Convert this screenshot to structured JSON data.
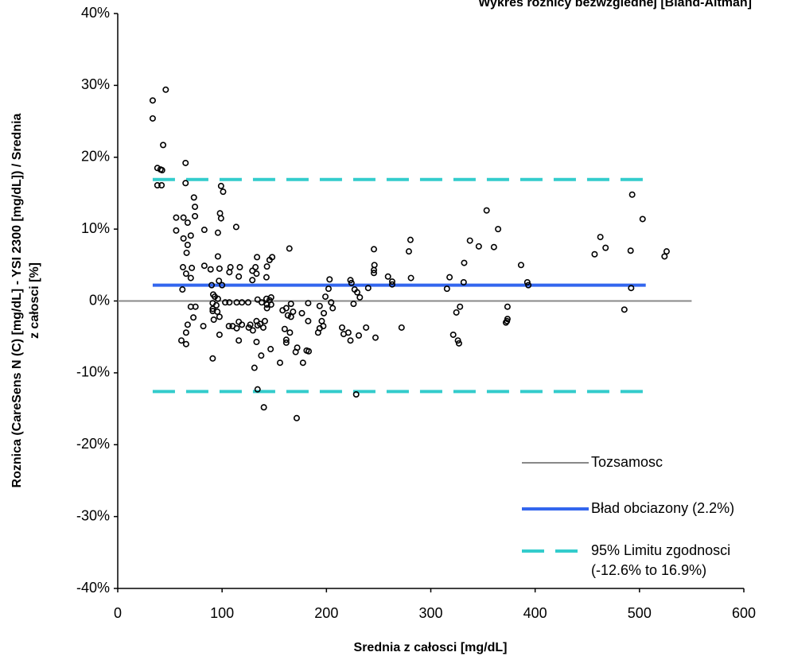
{
  "chart_data": {
    "type": "scatter",
    "title": "Wykres roznicy bezwzglednej [Bland-Altman]",
    "x_label": "Srednia z całosci [mg/dL]",
    "y_label": [
      "Roznica  (CareSens N  (C)  [mg/dL] - YSI 2300 [mg/dL]) / Srednia",
      "z całosci [%]"
    ],
    "xlim": [
      0,
      600
    ],
    "ylim": [
      -40,
      40
    ],
    "xticks": [
      0,
      100,
      200,
      300,
      400,
      500,
      600
    ],
    "yticks": [
      {
        "value": 40,
        "label": "40%"
      },
      {
        "value": 30,
        "label": "30%"
      },
      {
        "value": 20,
        "label": "20%"
      },
      {
        "value": 10,
        "label": "10%"
      },
      {
        "value": 0,
        "label": "0%"
      },
      {
        "value": -10,
        "label": "-10%"
      },
      {
        "value": -20,
        "label": "-20%"
      },
      {
        "value": -30,
        "label": "-30%"
      },
      {
        "value": -40,
        "label": "-40%"
      }
    ],
    "reference_lines": [
      {
        "name_lines": [
          "Tozsamosc"
        ],
        "color": "#888888",
        "dashed": false,
        "width": 2,
        "values": [
          0
        ],
        "x": [
          0,
          550
        ]
      },
      {
        "name_lines": [
          "Bład obciazony (2.2%)"
        ],
        "color": "#3366ee",
        "dashed": false,
        "width": 4,
        "values": [
          2.2
        ],
        "x": [
          33.5,
          506
        ]
      },
      {
        "name_lines": [
          "95% Limitu zgodnosci",
          "(-12.6% to 16.9%)"
        ],
        "color": "#33cccc",
        "dashed": true,
        "width": 4,
        "values": [
          -12.6,
          16.9
        ],
        "x": [
          33.5,
          506
        ]
      }
    ],
    "series": [
      {
        "color": "#000000",
        "x": [
          33.5,
          33.5,
          38,
          41,
          38,
          42,
          43.5,
          46,
          42.5,
          65,
          65,
          56,
          63,
          67,
          73,
          74,
          74,
          56,
          63,
          70,
          67,
          66,
          62.5,
          71,
          65.5,
          70,
          62,
          83,
          83,
          89,
          97.5,
          96,
          99,
          101,
          98,
          99,
          96,
          113.5,
          108,
          107,
          117,
          116,
          100,
          97,
          90,
          91.5,
          93,
          96,
          91,
          94.5,
          91,
          95.5,
          97.5,
          92,
          91,
          103,
          107,
          114,
          119,
          125,
          116,
          114,
          110,
          106.5,
          119,
          125.5,
          70,
          74.5,
          72.5,
          67,
          65.5,
          61,
          65.5,
          82,
          91,
          97.5,
          116,
          129,
          129,
          133,
          133.5,
          132,
          143,
          148,
          145.5,
          142.5,
          134,
          142.5,
          138,
          145.5,
          147,
          143,
          147,
          133,
          136.5,
          141,
          139.5,
          134,
          127,
          143,
          129.5,
          133,
          146.5,
          137.5,
          131,
          134,
          140,
          155.5,
          164.5,
          158,
          161.5,
          166,
          163,
          166,
          168,
          160,
          161.5,
          161.5,
          165,
          172,
          170.5,
          177.5,
          181,
          183,
          171.5,
          182.5,
          182.5,
          176.5,
          192,
          193.5,
          195.5,
          197,
          193.5,
          199,
          202,
          203,
          204.5,
          206,
          197.5,
          215,
          216.5,
          221,
          223,
          223,
          224,
          227,
          229.5,
          232,
          226,
          228.5,
          231,
          238,
          240,
          245.5,
          245.5,
          246,
          245.5,
          247,
          259,
          263,
          263,
          272,
          279,
          280.5,
          281,
          315.5,
          318,
          321.5,
          324.5,
          328,
          326,
          327,
          331.5,
          332,
          337.5,
          346,
          353.5,
          360.5,
          364.5,
          373.5,
          373.5,
          372,
          373,
          386.5,
          392.5,
          393.5,
          457,
          462.5,
          467.5,
          485.5,
          493,
          491.5,
          492,
          503,
          524,
          526
        ],
        "values": [
          27.9,
          25.4,
          18.5,
          18.3,
          16.1,
          16.1,
          21.7,
          29.4,
          18.2,
          19.2,
          16.4,
          11.6,
          11.6,
          10.9,
          14.4,
          13.1,
          11.8,
          9.8,
          8.7,
          9.1,
          7.8,
          6.7,
          4.7,
          4.6,
          3.8,
          3.2,
          1.6,
          9.9,
          4.9,
          4.4,
          4.5,
          6.2,
          16.0,
          15.2,
          12.2,
          11.5,
          9.5,
          10.3,
          4.7,
          4.0,
          4.7,
          3.4,
          2.2,
          2.8,
          2.2,
          0.9,
          0.6,
          0.3,
          -0.3,
          -0.6,
          -1.1,
          -1.5,
          -2.2,
          -2.6,
          -1.4,
          -0.2,
          -0.2,
          -0.2,
          -0.2,
          -0.2,
          -2.9,
          -3.8,
          -3.5,
          -3.5,
          -3.3,
          -3.7,
          -0.8,
          -0.8,
          -2.3,
          -3.3,
          -4.4,
          -5.5,
          -6.0,
          -3.5,
          -8.0,
          -4.7,
          -5.5,
          4.2,
          2.9,
          3.8,
          6.1,
          4.7,
          4.8,
          6.1,
          5.7,
          3.3,
          0.2,
          0.3,
          -0.2,
          0.1,
          0.5,
          -0.5,
          -0.5,
          -2.8,
          -3.2,
          -2.8,
          -3.7,
          -3.4,
          -3.3,
          -1.0,
          -4.1,
          -5.7,
          -6.7,
          -7.6,
          -9.3,
          -12.3,
          -14.8,
          -8.6,
          7.3,
          -1.3,
          -1.0,
          -0.4,
          -2.0,
          -2.2,
          -1.5,
          -3.9,
          -5.4,
          -5.8,
          -4.4,
          -6.5,
          -7.1,
          -8.6,
          -6.9,
          -7.0,
          -16.3,
          -0.3,
          -2.8,
          -1.7,
          -4.4,
          -3.8,
          -2.8,
          -3.5,
          -0.7,
          0.6,
          1.7,
          3.0,
          -0.2,
          -1.0,
          -1.7,
          -3.7,
          -4.6,
          -4.4,
          -5.5,
          2.9,
          2.5,
          1.6,
          1.2,
          0.5,
          -0.4,
          -13.0,
          -4.8,
          -3.7,
          1.8,
          3.9,
          4.3,
          5.0,
          7.2,
          -5.1,
          3.4,
          2.7,
          2.3,
          -3.7,
          6.9,
          8.5,
          3.2,
          1.7,
          3.3,
          -4.7,
          -1.6,
          -0.8,
          -5.5,
          -5.9,
          2.6,
          5.3,
          8.4,
          7.6,
          12.6,
          7.5,
          10.0,
          -0.8,
          -2.5,
          -3.0,
          -2.8,
          5.0,
          2.6,
          2.2,
          6.5,
          8.9,
          7.4,
          -1.2,
          14.8,
          7.0,
          1.8,
          11.4,
          6.2,
          6.9
        ]
      }
    ]
  }
}
